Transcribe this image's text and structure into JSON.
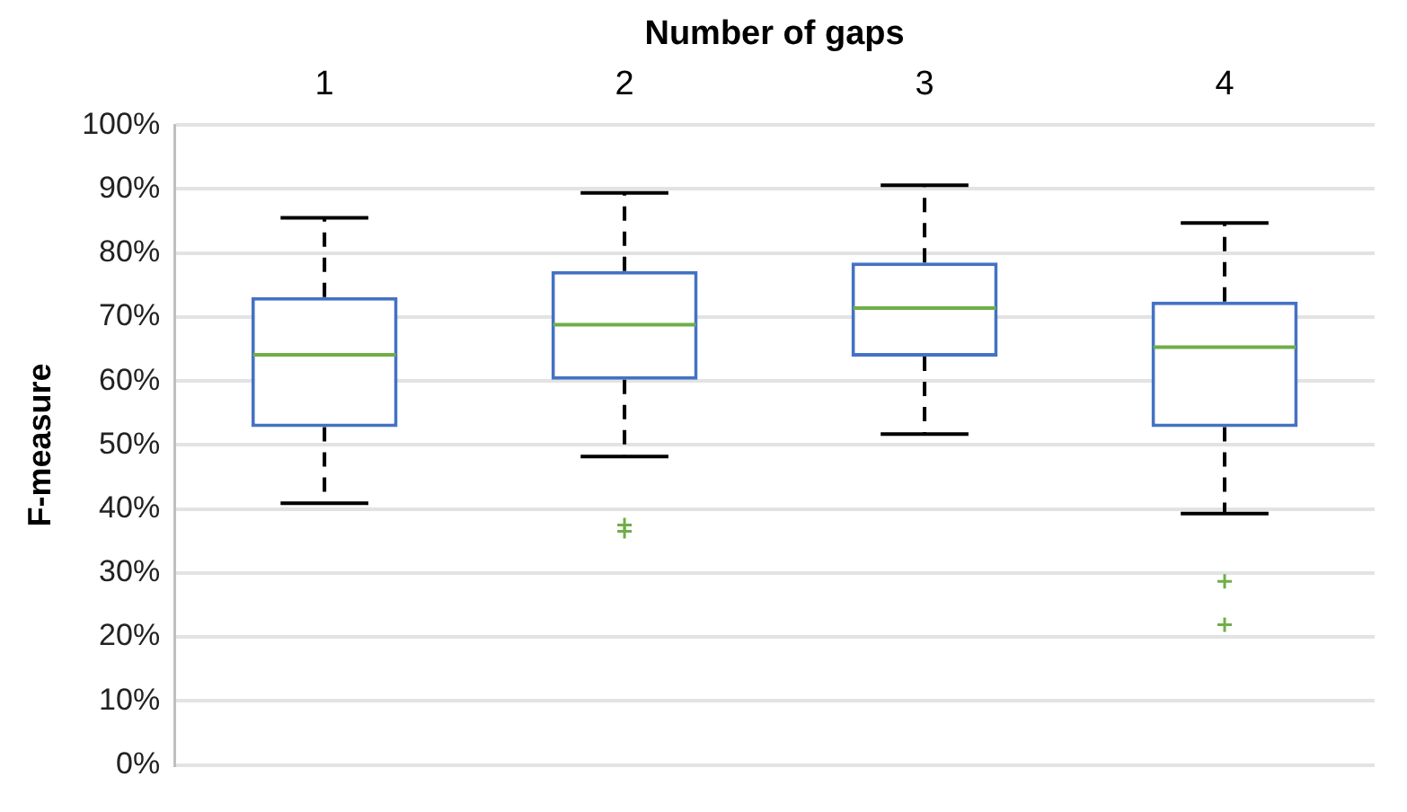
{
  "chart_data": {
    "type": "box",
    "xlabel": "Number of gaps",
    "ylabel": "F-measure",
    "categories": [
      "1",
      "2",
      "3",
      "4"
    ],
    "series": [
      {
        "color": "#4472c4",
        "boxes": [
          {
            "low": 40.9,
            "q1": 52.8,
            "median": 64.1,
            "q3": 73.1,
            "high": 85.5
          },
          {
            "low": 48.2,
            "q1": 60.2,
            "median": 68.8,
            "q3": 77.2,
            "high": 89.4,
            "outliers": [
              36.5,
              37.5
            ]
          },
          {
            "low": 51.7,
            "q1": 63.8,
            "median": 71.4,
            "q3": 78.5,
            "high": 90.6
          },
          {
            "low": 39.3,
            "q1": 52.8,
            "median": 65.3,
            "q3": 72.4,
            "high": 84.7,
            "outliers": [
              28.7,
              21.9
            ]
          }
        ]
      }
    ],
    "ylim": [
      0,
      100
    ],
    "yticks": [
      {
        "value": 0,
        "label": "0%"
      },
      {
        "value": 10,
        "label": "10%"
      },
      {
        "value": 20,
        "label": "20%"
      },
      {
        "value": 30,
        "label": "30%"
      },
      {
        "value": 40,
        "label": "40%"
      },
      {
        "value": 50,
        "label": "50%"
      },
      {
        "value": 60,
        "label": "60%"
      },
      {
        "value": 70,
        "label": "70%"
      },
      {
        "value": 80,
        "label": "80%"
      },
      {
        "value": 90,
        "label": "90%"
      },
      {
        "value": 100,
        "label": "100%"
      }
    ],
    "grid": "y",
    "legend": false,
    "marker": "cross"
  }
}
